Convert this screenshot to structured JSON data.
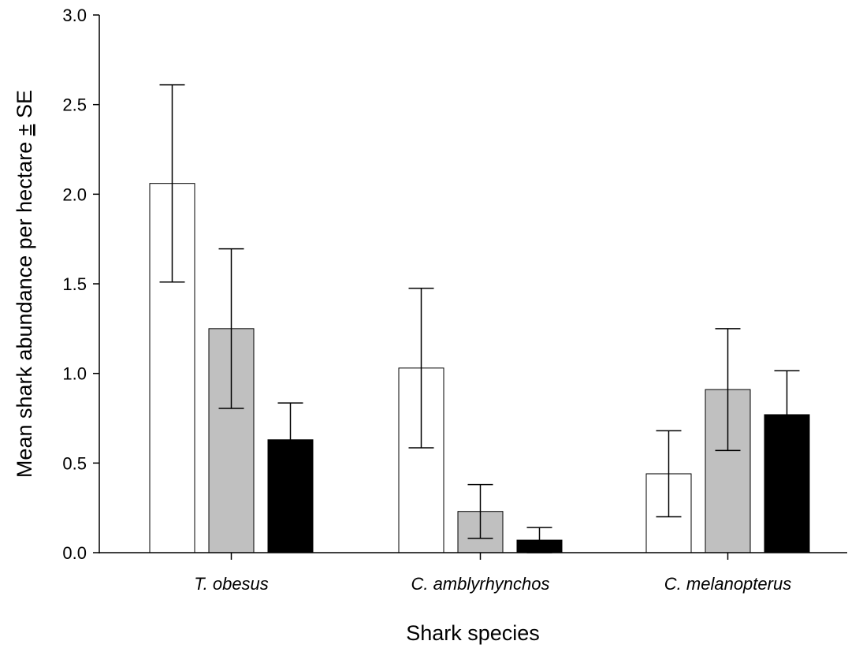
{
  "chart_data": {
    "type": "bar",
    "title": "",
    "xlabel": "Shark species",
    "ylabel": "Mean shark abundance per hectare ± SE",
    "ylabel_parts": [
      "Mean shark abundance per hectare ",
      "±",
      " SE"
    ],
    "categories": [
      "T. obesus",
      "C. amblyrhynchos",
      "C. melanopterus"
    ],
    "ylim": [
      0,
      3.0
    ],
    "yticks": [
      "0.0",
      "0.5",
      "1.0",
      "1.5",
      "2.0",
      "2.5",
      "3.0"
    ],
    "grid": false,
    "legend": "none",
    "series": [
      {
        "color": "#ffffff",
        "values": [
          2.06,
          1.03,
          0.44
        ],
        "se": [
          0.55,
          0.445,
          0.24
        ]
      },
      {
        "color": "#c0c0c0",
        "values": [
          1.25,
          0.23,
          0.91
        ],
        "se": [
          0.445,
          0.15,
          0.34
        ]
      },
      {
        "color": "#000000",
        "values": [
          0.63,
          0.07,
          0.77
        ],
        "se": [
          0.205,
          0.07,
          0.245
        ]
      }
    ]
  }
}
